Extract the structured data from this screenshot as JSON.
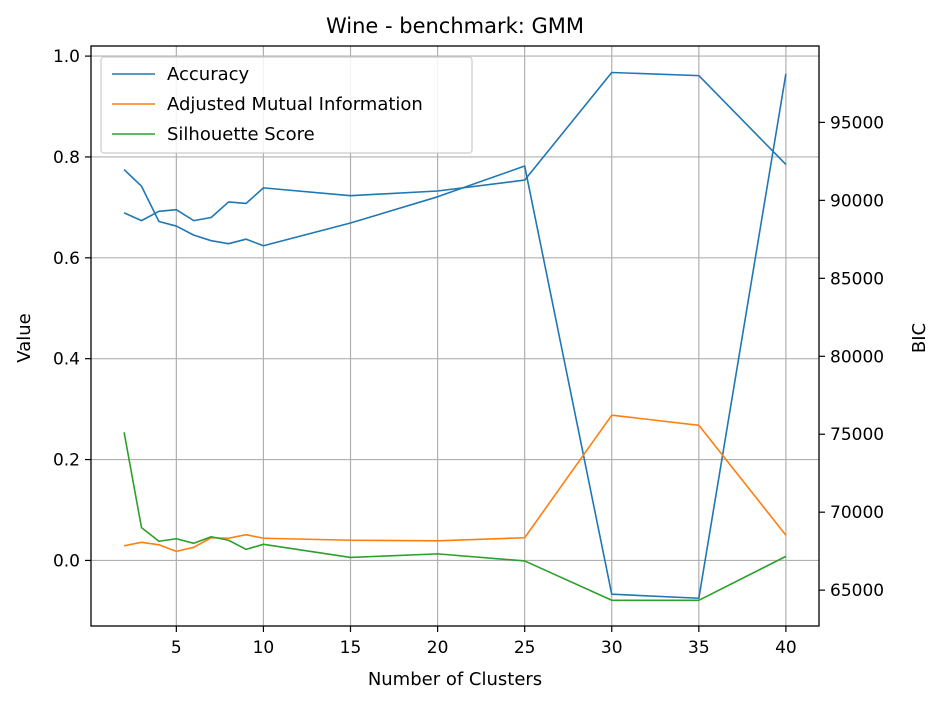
{
  "chart_data": {
    "type": "line",
    "title": "Wine - benchmark: GMM",
    "xlabel": "Number of Clusters",
    "ylabel": "Value",
    "ylabel_right": "BIC",
    "xlim": [
      0.1,
      41.9
    ],
    "ylim": [
      -0.13,
      1.02
    ],
    "ylim_right": [
      62700,
      99900
    ],
    "x_ticks": [
      5,
      10,
      15,
      20,
      25,
      30,
      35,
      40
    ],
    "y_ticks": [
      0.0,
      0.2,
      0.4,
      0.6,
      0.8,
      1.0
    ],
    "y_tick_labels": [
      "0.0",
      "0.2",
      "0.4",
      "0.6",
      "0.8",
      "1.0"
    ],
    "y_right_ticks": [
      65000,
      70000,
      75000,
      80000,
      85000,
      90000,
      95000
    ],
    "grid": true,
    "legend_position": "upper-left",
    "x": [
      2,
      3,
      4,
      5,
      6,
      7,
      8,
      9,
      10,
      15,
      20,
      25,
      30,
      35,
      40
    ],
    "series": [
      {
        "name": "Accuracy",
        "color": "#1f77b4",
        "axis": "left",
        "values": [
          0.775,
          0.742,
          0.672,
          0.663,
          0.645,
          0.634,
          0.628,
          0.637,
          0.624,
          0.669,
          0.721,
          0.782,
          -0.067,
          -0.075,
          0.965
        ]
      },
      {
        "name": "Adjusted Mutual Information",
        "color": "#ff7f0e",
        "axis": "left",
        "values": [
          0.029,
          0.036,
          0.031,
          0.018,
          0.026,
          0.045,
          0.044,
          0.051,
          0.044,
          0.04,
          0.039,
          0.045,
          0.288,
          0.268,
          0.05
        ]
      },
      {
        "name": "Silhouette Score",
        "color": "#2ca02c",
        "axis": "left",
        "values": [
          0.254,
          0.065,
          0.038,
          0.043,
          0.034,
          0.047,
          0.04,
          0.022,
          0.032,
          0.006,
          0.013,
          -0.001,
          -0.079,
          -0.079,
          0.008
        ]
      },
      {
        "name": "",
        "color": "#1f77b4",
        "axis": "right",
        "values": [
          89200,
          88700,
          89300,
          89400,
          88700,
          88900,
          89900,
          89800,
          90800,
          90300,
          90600,
          91300,
          98200,
          98000,
          92300
        ]
      }
    ]
  }
}
